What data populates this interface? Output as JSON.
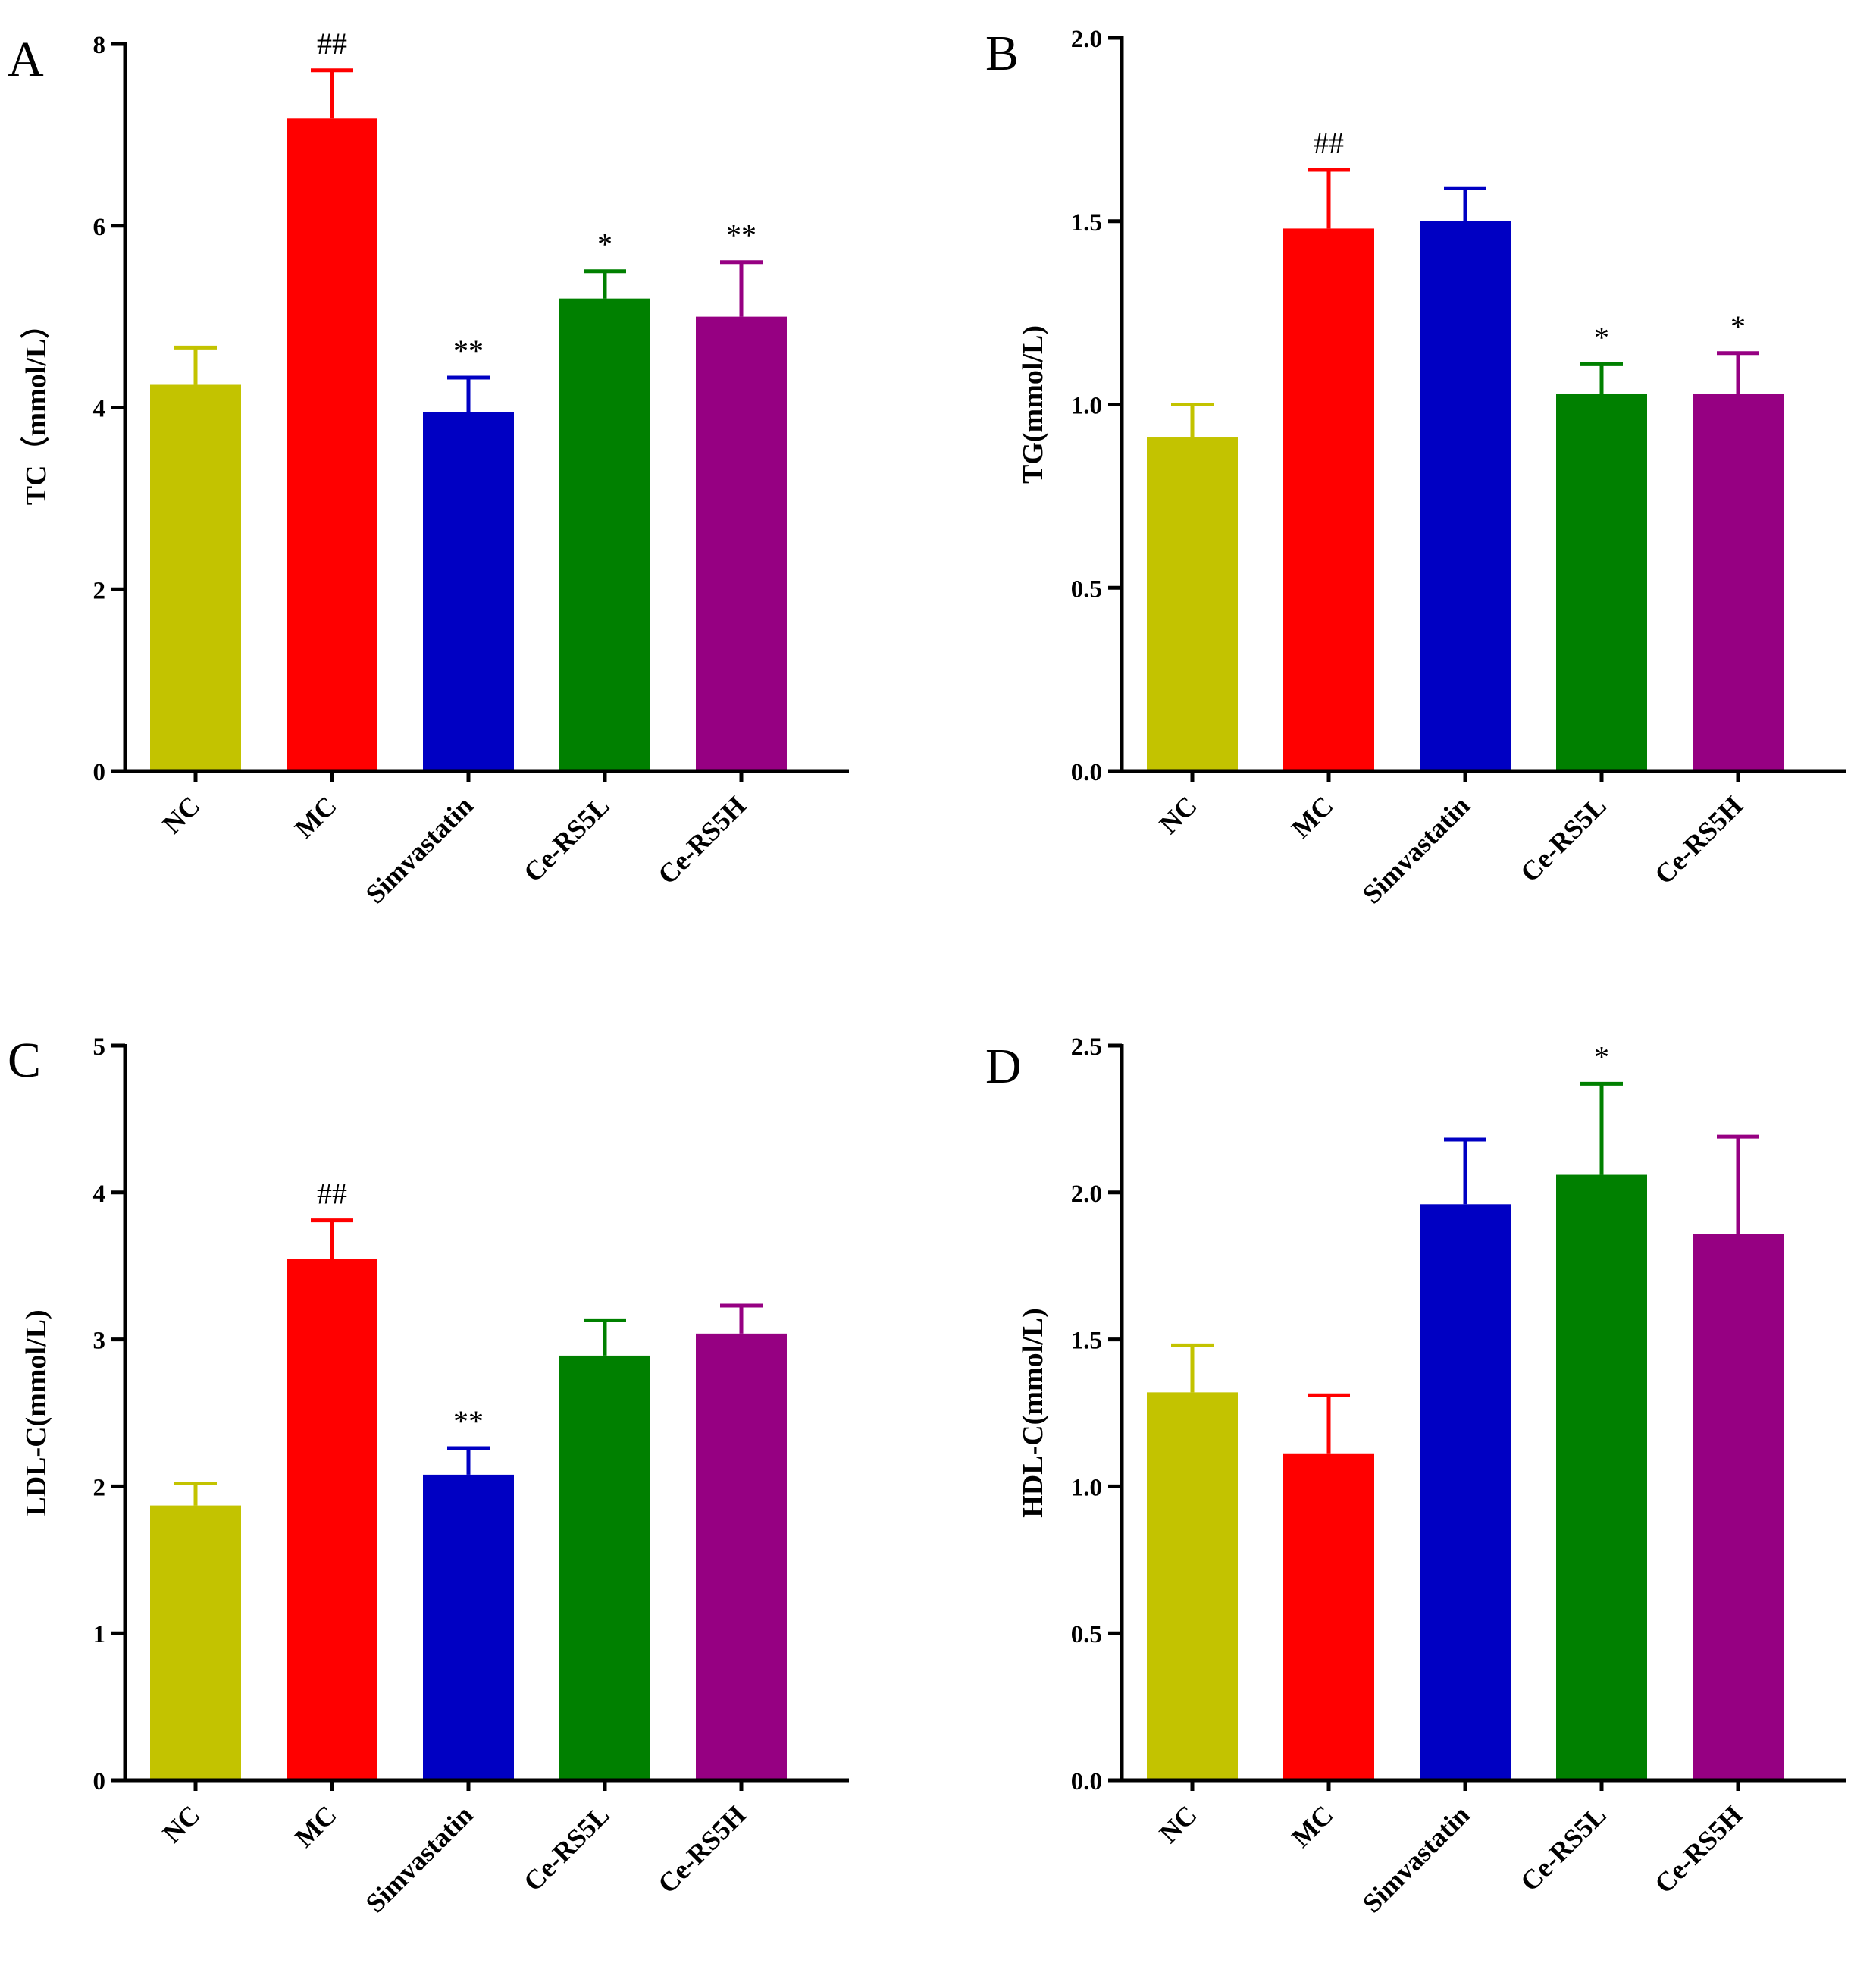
{
  "chart_data": [
    {
      "type": "bar",
      "panel": "A",
      "title": "",
      "xlabel": "",
      "ylabel": "TC（mmol/L）",
      "ylim": [
        0,
        8
      ],
      "yticks": [
        0,
        2,
        4,
        6,
        8
      ],
      "yticklabels": [
        "0",
        "2",
        "4",
        "6",
        "8"
      ],
      "categories": [
        "NC",
        "MC",
        "Simvastatin",
        "Ce-RS5L",
        "Ce-RS5H"
      ],
      "values": [
        4.25,
        7.18,
        3.95,
        5.2,
        5.0
      ],
      "errors": [
        0.41,
        0.53,
        0.38,
        0.3,
        0.6
      ],
      "colors": [
        "#c3c300",
        "#ff0000",
        "#0000c3",
        "#008000",
        "#960082"
      ],
      "annotations": [
        "",
        "##",
        "**",
        "*",
        "**"
      ]
    },
    {
      "type": "bar",
      "panel": "B",
      "title": "",
      "xlabel": "",
      "ylabel": "TG(mmol/L)",
      "ylim": [
        0,
        2.0
      ],
      "yticks": [
        0,
        0.5,
        1.0,
        1.5,
        2.0
      ],
      "yticklabels": [
        "0.0",
        "0.5",
        "1.0",
        "1.5",
        "2.0"
      ],
      "categories": [
        "NC",
        "MC",
        "Simvastatin",
        "Ce-RS5L",
        "Ce-RS5H"
      ],
      "values": [
        0.91,
        1.48,
        1.5,
        1.03,
        1.03
      ],
      "errors": [
        0.09,
        0.16,
        0.09,
        0.08,
        0.11
      ],
      "colors": [
        "#c3c300",
        "#ff0000",
        "#0000c3",
        "#008000",
        "#960082"
      ],
      "annotations": [
        "",
        "##",
        "",
        "*",
        "*"
      ]
    },
    {
      "type": "bar",
      "panel": "C",
      "title": "",
      "xlabel": "",
      "ylabel": "LDL-C(mmol/L)",
      "ylim": [
        0,
        5
      ],
      "yticks": [
        0,
        1,
        2,
        3,
        4,
        5
      ],
      "yticklabels": [
        "0",
        "1",
        "2",
        "3",
        "4",
        "5"
      ],
      "categories": [
        "NC",
        "MC",
        "Simvastatin",
        "Ce-RS5L",
        "Ce-RS5H"
      ],
      "values": [
        1.87,
        3.55,
        2.08,
        2.89,
        3.04
      ],
      "errors": [
        0.15,
        0.26,
        0.18,
        0.24,
        0.19
      ],
      "colors": [
        "#c3c300",
        "#ff0000",
        "#0000c3",
        "#008000",
        "#960082"
      ],
      "annotations": [
        "",
        "##",
        "**",
        "",
        ""
      ]
    },
    {
      "type": "bar",
      "panel": "D",
      "title": "",
      "xlabel": "",
      "ylabel": "HDL-C(mmol/L)",
      "ylim": [
        0,
        2.5
      ],
      "yticks": [
        0,
        0.5,
        1.0,
        1.5,
        2.0,
        2.5
      ],
      "yticklabels": [
        "0.0",
        "0.5",
        "1.0",
        "1.5",
        "2.0",
        "2.5"
      ],
      "categories": [
        "NC",
        "MC",
        "Simvastatin",
        "Ce-RS5L",
        "Ce-RS5H"
      ],
      "values": [
        1.32,
        1.11,
        1.96,
        2.06,
        1.86
      ],
      "errors": [
        0.16,
        0.2,
        0.22,
        0.31,
        0.33
      ],
      "colors": [
        "#c3c300",
        "#ff0000",
        "#0000c3",
        "#008000",
        "#960082"
      ],
      "annotations": [
        "",
        "",
        "",
        "*",
        ""
      ]
    }
  ]
}
